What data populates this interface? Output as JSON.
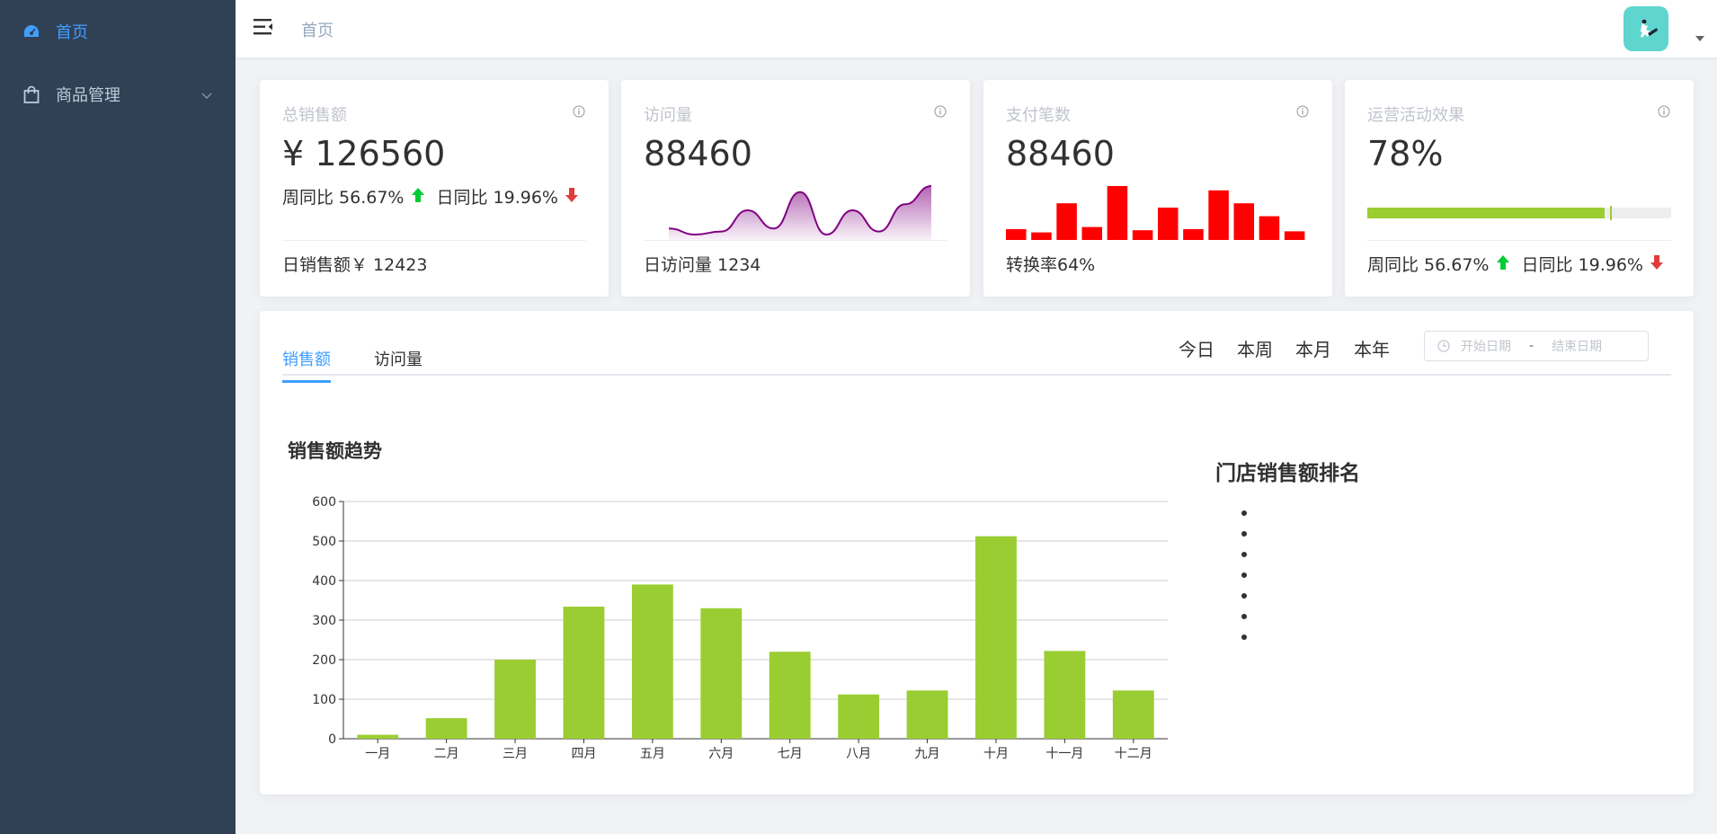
{
  "sidebar": {
    "items": [
      {
        "label": "首页",
        "icon": "dashboard-icon",
        "active": true
      },
      {
        "label": "商品管理",
        "icon": "shopping-bag-icon",
        "active": false
      }
    ]
  },
  "header": {
    "breadcrumb": "首页"
  },
  "cards": [
    {
      "title": "总销售额",
      "value": "¥ 126560",
      "week_label": "周同比 56.67%",
      "day_label": "日同比 19.96%",
      "footer": "日销售额￥ 12423"
    },
    {
      "title": "访问量",
      "value": "88460",
      "footer": "日访问量 1234",
      "sparkline": [
        2,
        1,
        1.5,
        5,
        2,
        8,
        1,
        5,
        1.5,
        6,
        9
      ]
    },
    {
      "title": "支付笔数",
      "value": "88460",
      "footer": "转换率64%",
      "bars": [
        10,
        7,
        34,
        12,
        50,
        9,
        30,
        10,
        46,
        34,
        22,
        8
      ]
    },
    {
      "title": "运营活动效果",
      "value": "78%",
      "progress_percent": 78,
      "week_label": "周同比 56.67%",
      "day_label": "日同比 19.96%"
    }
  ],
  "panel": {
    "tabs": [
      "销售额",
      "访问量"
    ],
    "ranges": [
      "今日",
      "本周",
      "本月",
      "本年"
    ],
    "date_start_placeholder": "开始日期",
    "date_sep": "-",
    "date_end_placeholder": "结束日期",
    "chart_title": "销售额趋势",
    "rank_title": "门店销售额排名",
    "rank_count": 7
  },
  "colors": {
    "sidebar_bg": "#304156",
    "accent": "#409eff",
    "bar_green": "#9acd32",
    "red": "#ff0000",
    "purple": "#800080",
    "up_green": "#00cc33",
    "down_red": "#e03c3c"
  },
  "chart_data": {
    "type": "bar",
    "title": "销售额趋势",
    "categories": [
      "一月",
      "二月",
      "三月",
      "四月",
      "五月",
      "六月",
      "七月",
      "八月",
      "九月",
      "十月",
      "十一月",
      "十二月"
    ],
    "values": [
      10,
      52,
      200,
      334,
      390,
      330,
      220,
      112,
      122,
      512,
      222,
      122
    ],
    "ylim": [
      0,
      600
    ],
    "yticks": [
      0,
      100,
      200,
      300,
      400,
      500,
      600
    ],
    "grid": true
  }
}
